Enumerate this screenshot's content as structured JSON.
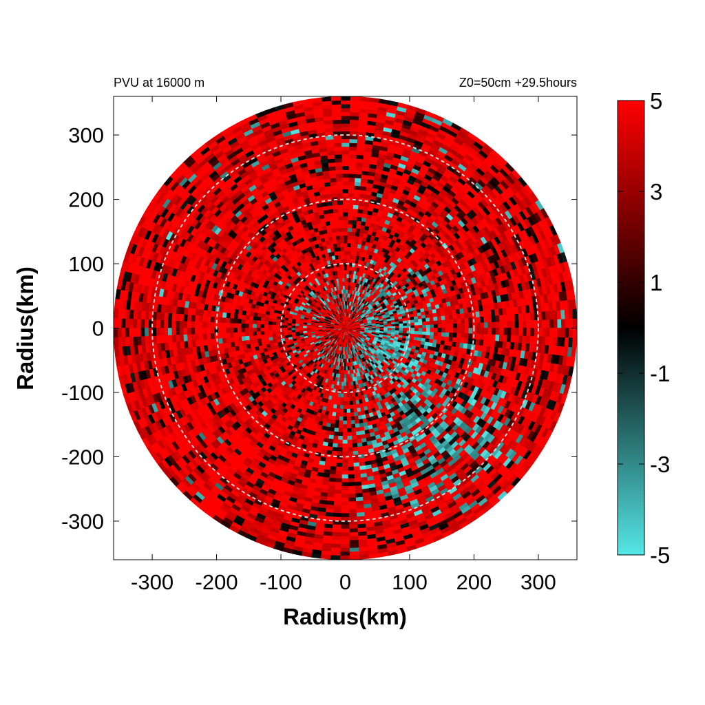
{
  "chart_data": {
    "type": "heatmap",
    "title_left": "PVU at 16000 m",
    "title_right": "Z0=50cm  +29.5hours",
    "xlabel": "Radius(km)",
    "ylabel": "Radius(km)",
    "xlim": [
      -360,
      360
    ],
    "ylim": [
      -360,
      360
    ],
    "x_ticks": [
      -300,
      -200,
      -100,
      0,
      100,
      200,
      300
    ],
    "y_ticks": [
      300,
      200,
      100,
      0,
      -100,
      -200,
      -300
    ],
    "x_tick_labels": [
      "-300",
      "-200",
      "-100",
      "0",
      "100",
      "200",
      "300"
    ],
    "y_tick_labels": [
      "300",
      "200",
      "100",
      "0",
      "-100",
      "-200",
      "-300"
    ],
    "domain_radius_km": 360,
    "reference_circles_km": [
      100,
      200,
      300
    ],
    "colorbar": {
      "range": [
        -5,
        5
      ],
      "ticks": [
        5,
        3,
        1,
        -1,
        -3,
        -5
      ],
      "tick_labels": [
        "5",
        "3",
        "1",
        "-1",
        "-3",
        "-5"
      ],
      "colors": {
        "min": "#55e6e6",
        "mid": "#000000",
        "max": "#ff0000"
      }
    },
    "pattern": "Mostly positive PVU (red, saturated at 5) across the domain, with a band of negative PVU (cyan) spiralling from the inner core (~50 km) into the south and southeast quadrant out to ~300 km."
  }
}
